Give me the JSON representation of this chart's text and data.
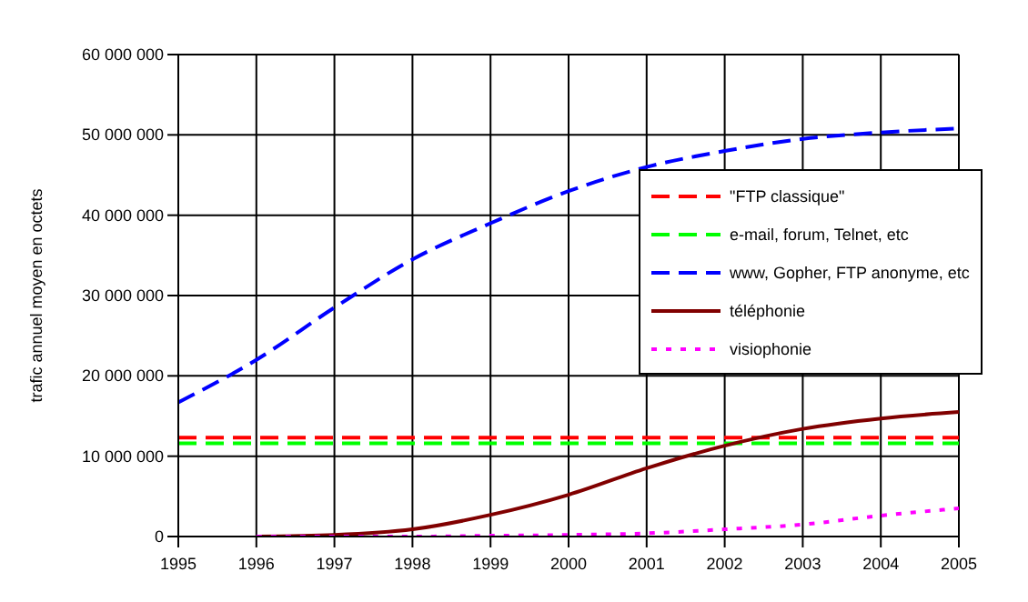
{
  "chart_data": {
    "type": "line",
    "ylabel": "trafic annuel moyen en octets",
    "x": [
      1995,
      1996,
      1997,
      1998,
      1999,
      2000,
      2001,
      2002,
      2003,
      2004,
      2005
    ],
    "xlim": [
      1995,
      2005
    ],
    "xticks": [
      1995,
      1996,
      1997,
      1998,
      1999,
      2000,
      2001,
      2002,
      2003,
      2004,
      2005
    ],
    "ylim": [
      0,
      60000000
    ],
    "yticks": [
      {
        "value": 0,
        "label": "0"
      },
      {
        "value": 10000000,
        "label": "10 000 000"
      },
      {
        "value": 20000000,
        "label": "20 000 000"
      },
      {
        "value": 30000000,
        "label": "30 000 000"
      },
      {
        "value": 40000000,
        "label": "40 000 000"
      },
      {
        "value": 50000000,
        "label": "50 000 000"
      },
      {
        "value": 60000000,
        "label": "60 000 000"
      }
    ],
    "grid": true,
    "legend": "right",
    "marker": "none",
    "series": [
      {
        "name": "\"FTP classique\"",
        "color": "#ff0000",
        "line_style": "dashed",
        "values": [
          12300000,
          12300000,
          12300000,
          12300000,
          12300000,
          12300000,
          12300000,
          12300000,
          12300000,
          12300000,
          12300000
        ]
      },
      {
        "name": "e-mail, forum, Telnet, etc",
        "color": "#00ff00",
        "line_style": "dashed",
        "values": [
          11600000,
          11600000,
          11600000,
          11600000,
          11600000,
          11600000,
          11600000,
          11600000,
          11600000,
          11600000,
          11600000
        ]
      },
      {
        "name": "www, Gopher, FTP anonyme, etc",
        "color": "#0000ff",
        "line_style": "dashed",
        "values": [
          16700000,
          22000000,
          28500000,
          34500000,
          39000000,
          43000000,
          46000000,
          48000000,
          49500000,
          50300000,
          50800000
        ]
      },
      {
        "name": "téléphonie",
        "color": "#800000",
        "line_style": "solid",
        "values": [
          null,
          0,
          200000,
          900000,
          2700000,
          5200000,
          8500000,
          11300000,
          13400000,
          14700000,
          15500000
        ]
      },
      {
        "name": "visiophonie",
        "color": "#ff00ff",
        "line_style": "dotted",
        "values": [
          null,
          0,
          0,
          0,
          100000,
          200000,
          400000,
          900000,
          1500000,
          2600000,
          3500000
        ]
      }
    ]
  }
}
